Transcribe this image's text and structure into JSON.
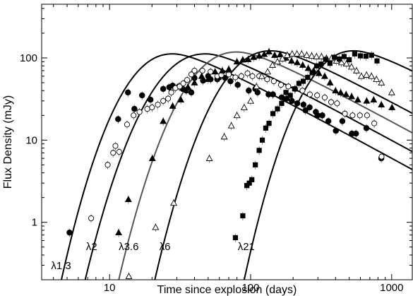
{
  "chart_data": {
    "type": "scatter",
    "title": "",
    "xlabel": "Time since explosion (days)",
    "ylabel": "Flux Density (mJy)",
    "xscale": "log",
    "yscale": "log",
    "xlim": [
      3.3,
      1400
    ],
    "ylim": [
      0.2,
      450
    ],
    "xticks": [
      10,
      100,
      1000
    ],
    "yticks": [
      1,
      10,
      100
    ],
    "grid": false,
    "legend": "none",
    "series": [
      {
        "name": "λ1.3",
        "marker": "filled-circle",
        "color": "#000000",
        "curve_color": "#000000",
        "label_at": [
          3.85,
          0.27
        ],
        "model": {
          "start": 4.0,
          "peak_t": 28,
          "peak_f": 112,
          "rise": 3.2,
          "decay": 0.95
        },
        "points": [
          [
            5.2,
            0.75
          ],
          [
            11.5,
            18
          ],
          [
            13.5,
            38
          ],
          [
            15,
            24
          ],
          [
            17,
            35
          ],
          [
            19.5,
            31
          ],
          [
            24,
            42
          ],
          [
            26.5,
            44
          ],
          [
            28,
            46
          ],
          [
            31,
            45
          ],
          [
            33,
            42
          ],
          [
            35,
            40
          ],
          [
            38,
            38
          ],
          [
            40,
            57
          ],
          [
            46,
            53
          ],
          [
            50,
            60
          ],
          [
            52,
            55
          ],
          [
            58,
            55
          ],
          [
            60,
            58
          ],
          [
            66,
            57
          ],
          [
            72,
            52
          ],
          [
            81,
            47
          ],
          [
            97,
            40
          ],
          [
            108,
            42
          ],
          [
            112,
            38
          ],
          [
            134,
            36
          ],
          [
            144,
            36
          ],
          [
            166,
            33
          ],
          [
            180,
            32
          ],
          [
            196,
            30
          ],
          [
            214,
            28
          ],
          [
            237,
            27
          ],
          [
            245,
            23
          ],
          [
            262,
            25
          ],
          [
            290,
            22
          ],
          [
            298,
            20
          ],
          [
            322,
            20
          ],
          [
            356,
            17
          ],
          [
            402,
            13
          ],
          [
            447,
            17
          ],
          [
            522,
            12
          ],
          [
            558,
            12
          ],
          [
            662,
            14
          ],
          [
            844,
            6
          ]
        ]
      },
      {
        "name": "λ2",
        "marker": "open-circle",
        "color": "#000000",
        "curve_color": "#000000",
        "label_at": [
          6.8,
          0.46
        ],
        "model": {
          "start": 6.2,
          "peak_t": 48,
          "peak_f": 112,
          "rise": 3.0,
          "decay": 0.95
        },
        "points": [
          [
            7.4,
            1.12
          ],
          [
            9.7,
            5
          ],
          [
            10.6,
            7
          ],
          [
            11,
            8.5
          ],
          [
            11.7,
            7.2
          ],
          [
            13.3,
            15.5
          ],
          [
            14.8,
            20
          ],
          [
            16.3,
            22
          ],
          [
            18.5,
            24
          ],
          [
            20,
            25
          ],
          [
            22,
            27
          ],
          [
            24,
            30
          ],
          [
            26,
            32
          ],
          [
            27.4,
            38
          ],
          [
            29.3,
            43
          ],
          [
            31.4,
            45
          ],
          [
            33.3,
            49
          ],
          [
            35.5,
            54
          ],
          [
            38,
            63
          ],
          [
            40,
            70
          ],
          [
            45.5,
            70
          ],
          [
            52,
            68
          ],
          [
            58,
            60
          ],
          [
            62,
            62
          ],
          [
            70,
            63
          ],
          [
            78,
            58
          ],
          [
            86,
            60
          ],
          [
            95,
            65
          ],
          [
            103,
            60
          ],
          [
            115,
            60
          ],
          [
            131,
            55
          ],
          [
            146,
            52
          ],
          [
            164,
            47
          ],
          [
            185,
            45
          ],
          [
            207,
            42
          ],
          [
            233,
            40
          ],
          [
            263,
            36
          ],
          [
            296,
            35
          ],
          [
            335,
            33
          ],
          [
            372,
            29
          ],
          [
            410,
            28
          ],
          [
            466,
            21
          ],
          [
            528,
            20
          ],
          [
            595,
            20
          ],
          [
            669,
            20
          ],
          [
            752,
            16
          ],
          [
            848,
            6.3
          ]
        ]
      },
      {
        "name": "λ3.6",
        "marker": "filled-triangle",
        "color": "#000000",
        "curve_color": "#555555",
        "label_at": [
          11.6,
          0.46
        ],
        "model": {
          "start": 10.5,
          "peak_t": 80,
          "peak_f": 118,
          "rise": 3.1,
          "decay": 0.95
        },
        "points": [
          [
            11.6,
            0.75
          ],
          [
            13.6,
            1.9
          ],
          [
            20.1,
            6
          ],
          [
            24,
            17
          ],
          [
            28,
            26
          ],
          [
            32,
            31
          ],
          [
            36,
            44
          ],
          [
            40,
            50
          ],
          [
            45,
            60
          ],
          [
            50,
            55
          ],
          [
            56,
            68
          ],
          [
            63,
            70
          ],
          [
            70,
            73
          ],
          [
            80,
            90
          ],
          [
            88,
            95
          ],
          [
            96,
            96
          ],
          [
            105,
            102
          ],
          [
            115,
            106
          ],
          [
            125,
            111
          ],
          [
            135,
            119
          ],
          [
            148,
            108
          ],
          [
            162,
            110
          ],
          [
            178,
            100
          ],
          [
            195,
            92
          ],
          [
            214,
            88
          ],
          [
            234,
            82
          ],
          [
            256,
            75
          ],
          [
            280,
            70
          ],
          [
            305,
            65
          ],
          [
            335,
            60
          ],
          [
            366,
            50
          ],
          [
            400,
            40
          ],
          [
            435,
            38
          ],
          [
            475,
            36
          ],
          [
            520,
            34
          ],
          [
            575,
            31
          ],
          [
            665,
            30
          ],
          [
            745,
            31
          ],
          [
            845,
            27
          ],
          [
            1005,
            25
          ]
        ]
      },
      {
        "name": "λ6",
        "marker": "open-triangle",
        "color": "#000000",
        "curve_color": "#000000",
        "label_at": [
          22.5,
          0.46
        ],
        "model": {
          "start": 18.5,
          "peak_t": 140,
          "peak_f": 122,
          "rise": 3.2,
          "decay": 0.95
        },
        "points": [
          [
            13.7,
            0.22
          ],
          [
            21.2,
            0.87
          ],
          [
            28.5,
            1.72
          ],
          [
            51,
            6
          ],
          [
            65,
            11
          ],
          [
            73,
            15
          ],
          [
            80,
            20
          ],
          [
            90,
            25
          ],
          [
            100,
            30
          ],
          [
            110,
            45
          ],
          [
            120,
            60
          ],
          [
            132,
            68
          ],
          [
            143,
            82
          ],
          [
            155,
            90
          ],
          [
            168,
            98
          ],
          [
            182,
            108
          ],
          [
            197,
            112
          ],
          [
            213,
            112
          ],
          [
            230,
            112
          ],
          [
            250,
            108
          ],
          [
            271,
            106
          ],
          [
            293,
            104
          ],
          [
            318,
            104
          ],
          [
            345,
            99
          ],
          [
            374,
            99
          ],
          [
            406,
            92
          ],
          [
            441,
            88
          ],
          [
            478,
            85
          ],
          [
            519,
            78
          ],
          [
            563,
            70
          ],
          [
            610,
            60
          ],
          [
            663,
            62
          ],
          [
            719,
            60
          ],
          [
            780,
            55
          ],
          [
            846,
            50
          ],
          [
            1000,
            38
          ]
        ]
      },
      {
        "name": "λ21",
        "marker": "filled-square",
        "color": "#000000",
        "curve_color": "#000000",
        "label_at": [
          81,
          0.46
        ],
        "model": {
          "start": 76,
          "peak_t": 540,
          "peak_f": 122,
          "rise": 3.4,
          "decay": 0.95
        },
        "points": [
          [
            78,
            0.65
          ],
          [
            88,
            1.2
          ],
          [
            94,
            2.8
          ],
          [
            98,
            3
          ],
          [
            102,
            3.3
          ],
          [
            108,
            5
          ],
          [
            115,
            7.5
          ],
          [
            121,
            10
          ],
          [
            128,
            14
          ],
          [
            135,
            16
          ],
          [
            144,
            21
          ],
          [
            155,
            24
          ],
          [
            166,
            28
          ],
          [
            178,
            38
          ],
          [
            191,
            35
          ],
          [
            205,
            42
          ],
          [
            220,
            49
          ],
          [
            236,
            52
          ],
          [
            254,
            58
          ],
          [
            273,
            66
          ],
          [
            294,
            80
          ],
          [
            316,
            84
          ],
          [
            340,
            96
          ],
          [
            365,
            86
          ],
          [
            393,
            102
          ],
          [
            425,
            97
          ],
          [
            460,
            104
          ],
          [
            500,
            95
          ],
          [
            547,
            112
          ],
          [
            600,
            106
          ],
          [
            657,
            105
          ],
          [
            720,
            108
          ],
          [
            787,
            92
          ]
        ]
      }
    ]
  }
}
